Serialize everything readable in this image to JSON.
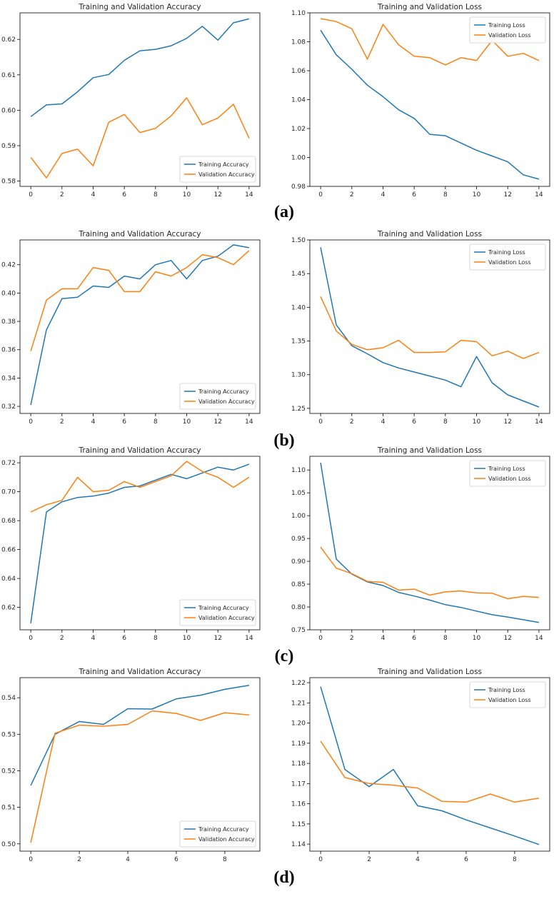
{
  "colors": {
    "train": "#1f77b4",
    "val": "#ff7f0e"
  },
  "panel_labels": [
    "(a)",
    "(b)",
    "(c)",
    "(d)"
  ],
  "chart_data": [
    {
      "type": "line",
      "panel": "(a)",
      "title": "Training and Validation Accuracy",
      "x": [
        0,
        1,
        2,
        3,
        4,
        5,
        6,
        7,
        8,
        9,
        10,
        11,
        12,
        13,
        14
      ],
      "xticks": [
        0,
        2,
        4,
        6,
        8,
        10,
        12,
        14
      ],
      "yticks": [
        "0.58",
        "0.59",
        "0.60",
        "0.61",
        "0.62"
      ],
      "ylim": [
        0.5785,
        0.6275
      ],
      "legend": "lower right",
      "series": [
        {
          "name": "Training Accuracy",
          "color": "train",
          "values": [
            0.5982,
            0.6015,
            0.6018,
            0.6052,
            0.6092,
            0.6101,
            0.6141,
            0.6168,
            0.6172,
            0.6182,
            0.6203,
            0.6237,
            0.6198,
            0.6247,
            0.6258
          ]
        },
        {
          "name": "Validation Accuracy",
          "color": "val",
          "values": [
            0.5867,
            0.5809,
            0.5878,
            0.589,
            0.5843,
            0.5966,
            0.5988,
            0.5937,
            0.5949,
            0.5984,
            0.6035,
            0.5959,
            0.5978,
            0.6017,
            0.5921
          ]
        }
      ]
    },
    {
      "type": "line",
      "panel": "(a)",
      "title": "Training and Validation Loss",
      "x": [
        0,
        1,
        2,
        3,
        4,
        5,
        6,
        7,
        8,
        9,
        10,
        11,
        12,
        13,
        14
      ],
      "xticks": [
        0,
        2,
        4,
        6,
        8,
        10,
        12,
        14
      ],
      "yticks": [
        "0.98",
        "1.00",
        "1.02",
        "1.04",
        "1.06",
        "1.08",
        "1.10"
      ],
      "ylim": [
        0.98,
        1.1
      ],
      "legend": "upper right",
      "series": [
        {
          "name": "Training Loss",
          "color": "train",
          "values": [
            1.088,
            1.071,
            1.061,
            1.05,
            1.042,
            1.033,
            1.027,
            1.016,
            1.015,
            1.01,
            1.005,
            1.001,
            0.997,
            0.988,
            0.985
          ]
        },
        {
          "name": "Validation Loss",
          "color": "val",
          "values": [
            1.096,
            1.094,
            1.089,
            1.068,
            1.092,
            1.078,
            1.07,
            1.069,
            1.064,
            1.069,
            1.067,
            1.081,
            1.07,
            1.072,
            1.067
          ]
        }
      ]
    },
    {
      "type": "line",
      "panel": "(b)",
      "title": "Training and Validation Accuracy",
      "x": [
        0,
        1,
        2,
        3,
        4,
        5,
        6,
        7,
        8,
        9,
        10,
        11,
        12,
        13,
        14
      ],
      "xticks": [
        0,
        2,
        4,
        6,
        8,
        10,
        12,
        14
      ],
      "yticks": [
        "0.32",
        "0.34",
        "0.36",
        "0.38",
        "0.40",
        "0.42"
      ],
      "ylim": [
        0.315,
        0.4375
      ],
      "legend": "lower right",
      "series": [
        {
          "name": "Training Accuracy",
          "color": "train",
          "values": [
            0.321,
            0.374,
            0.396,
            0.397,
            0.405,
            0.404,
            0.412,
            0.41,
            0.42,
            0.423,
            0.41,
            0.423,
            0.426,
            0.434,
            0.432
          ]
        },
        {
          "name": "Validation Accuracy",
          "color": "val",
          "values": [
            0.359,
            0.395,
            0.403,
            0.403,
            0.418,
            0.416,
            0.401,
            0.401,
            0.415,
            0.412,
            0.418,
            0.427,
            0.425,
            0.42,
            0.43
          ]
        }
      ]
    },
    {
      "type": "line",
      "panel": "(b)",
      "title": "Training and Validation Loss",
      "x": [
        0,
        1,
        2,
        3,
        4,
        5,
        6,
        7,
        8,
        9,
        10,
        11,
        12,
        13,
        14
      ],
      "xticks": [
        0,
        2,
        4,
        6,
        8,
        10,
        12,
        14
      ],
      "yticks": [
        "1.25",
        "1.30",
        "1.35",
        "1.40",
        "1.45",
        "1.50"
      ],
      "ylim": [
        1.2425,
        1.5
      ],
      "legend": "upper right",
      "series": [
        {
          "name": "Training Loss",
          "color": "train",
          "values": [
            1.489,
            1.374,
            1.343,
            1.331,
            1.318,
            1.31,
            1.304,
            1.298,
            1.292,
            1.282,
            1.327,
            1.288,
            1.27,
            1.261,
            1.252
          ]
        },
        {
          "name": "Validation Loss",
          "color": "val",
          "values": [
            1.416,
            1.365,
            1.345,
            1.337,
            1.34,
            1.351,
            1.333,
            1.333,
            1.334,
            1.351,
            1.349,
            1.328,
            1.335,
            1.324,
            1.333
          ]
        }
      ]
    },
    {
      "type": "line",
      "panel": "(c)",
      "title": "Training and Validation Accuracy",
      "x": [
        0,
        1,
        2,
        3,
        4,
        5,
        6,
        7,
        8,
        9,
        10,
        11,
        12,
        13,
        14
      ],
      "xticks": [
        0,
        2,
        4,
        6,
        8,
        10,
        12,
        14
      ],
      "yticks": [
        "0.62",
        "0.64",
        "0.66",
        "0.68",
        "0.70",
        "0.72"
      ],
      "ylim": [
        0.6045,
        0.7245
      ],
      "legend": "lower right",
      "series": [
        {
          "name": "Training Accuracy",
          "color": "train",
          "values": [
            0.609,
            0.686,
            0.693,
            0.696,
            0.697,
            0.699,
            0.703,
            0.704,
            0.708,
            0.712,
            0.709,
            0.713,
            0.717,
            0.715,
            0.719
          ]
        },
        {
          "name": "Validation Accuracy",
          "color": "val",
          "values": [
            0.686,
            0.691,
            0.694,
            0.71,
            0.7,
            0.701,
            0.707,
            0.703,
            0.707,
            0.711,
            0.721,
            0.714,
            0.71,
            0.703,
            0.71
          ]
        }
      ]
    },
    {
      "type": "line",
      "panel": "(c)",
      "title": "Training and Validation Loss",
      "x": [
        0,
        1,
        2,
        3,
        4,
        5,
        6,
        7,
        8,
        9,
        10,
        11,
        12,
        13,
        14
      ],
      "xticks": [
        0,
        2,
        4,
        6,
        8,
        10,
        12,
        14
      ],
      "yticks": [
        "0.75",
        "0.80",
        "0.85",
        "0.90",
        "0.95",
        "1.00",
        "1.05",
        "1.10"
      ],
      "ylim": [
        0.75,
        1.13
      ],
      "legend": "upper right",
      "series": [
        {
          "name": "Training Loss",
          "color": "train",
          "values": [
            1.116,
            0.905,
            0.872,
            0.855,
            0.847,
            0.832,
            0.824,
            0.815,
            0.805,
            0.799,
            0.791,
            0.783,
            0.778,
            0.772,
            0.766
          ]
        },
        {
          "name": "Validation Loss",
          "color": "val",
          "values": [
            0.931,
            0.885,
            0.873,
            0.856,
            0.854,
            0.837,
            0.839,
            0.826,
            0.833,
            0.835,
            0.831,
            0.83,
            0.818,
            0.823,
            0.821
          ]
        }
      ]
    },
    {
      "type": "line",
      "panel": "(d)",
      "title": "Training and Validation Accuracy",
      "x": [
        0,
        1,
        2,
        3,
        4,
        5,
        6,
        7,
        8,
        9
      ],
      "xticks": [
        0,
        2,
        4,
        6,
        8
      ],
      "yticks": [
        "0.50",
        "0.51",
        "0.52",
        "0.53",
        "0.54"
      ],
      "ylim": [
        0.498,
        0.5455
      ],
      "legend": "lower right",
      "series": [
        {
          "name": "Training Accuracy",
          "color": "train",
          "values": [
            0.516,
            0.53,
            0.5335,
            0.5327,
            0.537,
            0.5369,
            0.5397,
            0.5407,
            0.5423,
            0.5434
          ]
        },
        {
          "name": "Validation Accuracy",
          "color": "val",
          "values": [
            0.5003,
            0.5303,
            0.5325,
            0.5322,
            0.5327,
            0.5364,
            0.5357,
            0.5338,
            0.5359,
            0.5353
          ]
        }
      ]
    },
    {
      "type": "line",
      "panel": "(d)",
      "title": "Training and Validation Loss",
      "x": [
        0,
        1,
        2,
        3,
        4,
        5,
        6,
        7,
        8,
        9
      ],
      "xticks": [
        0,
        2,
        4,
        6,
        8
      ],
      "yticks": [
        "1.14",
        "1.15",
        "1.16",
        "1.17",
        "1.18",
        "1.19",
        "1.20",
        "1.21",
        "1.22"
      ],
      "ylim": [
        1.1365,
        1.2225
      ],
      "legend": "upper right",
      "series": [
        {
          "name": "Training Loss",
          "color": "train",
          "values": [
            1.218,
            1.177,
            1.1685,
            1.177,
            1.159,
            1.1565,
            1.152,
            1.148,
            1.144,
            1.1398
          ]
        },
        {
          "name": "Validation Loss",
          "color": "val",
          "values": [
            1.191,
            1.173,
            1.17,
            1.1692,
            1.1678,
            1.1612,
            1.1608,
            1.1648,
            1.1608,
            1.1628
          ]
        }
      ]
    }
  ]
}
